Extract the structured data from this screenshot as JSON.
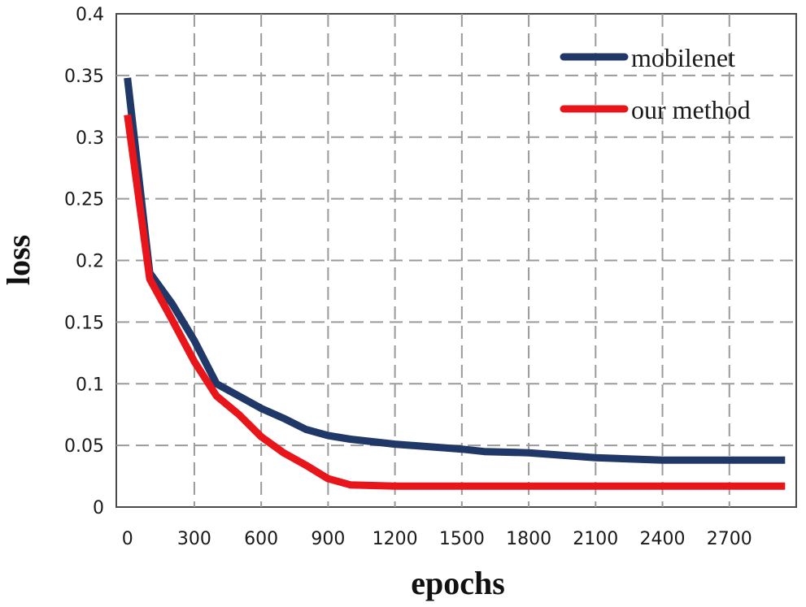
{
  "chart_data": {
    "type": "line",
    "title": "",
    "xlabel": "epochs",
    "ylabel": "loss",
    "xlim": [
      -50,
      3000
    ],
    "ylim": [
      0,
      0.4
    ],
    "grid": true,
    "legend_position": "top-right",
    "x_ticks": [
      0,
      300,
      600,
      900,
      1200,
      1500,
      1800,
      2100,
      2400,
      2700
    ],
    "x_tick_labels": [
      "0",
      "300",
      "600",
      "900",
      "1200",
      "1500",
      "1800",
      "2100",
      "2400",
      "2700"
    ],
    "y_ticks": [
      0,
      0.05,
      0.1,
      0.15,
      0.2,
      0.25,
      0.3,
      0.35,
      0.4
    ],
    "y_tick_labels": [
      "0",
      "0.05",
      "0.1",
      "0.15",
      "0.2",
      "0.25",
      "0.3",
      "0.35",
      "0.4"
    ],
    "series": [
      {
        "name": "mobilenet",
        "color": "#1f3868",
        "x": [
          0,
          100,
          200,
          300,
          400,
          500,
          600,
          700,
          800,
          900,
          1000,
          1200,
          1500,
          1600,
          1800,
          2100,
          2400,
          2700,
          2950
        ],
        "y": [
          0.348,
          0.19,
          0.165,
          0.135,
          0.1,
          0.09,
          0.08,
          0.072,
          0.063,
          0.058,
          0.055,
          0.051,
          0.047,
          0.045,
          0.044,
          0.04,
          0.038,
          0.038,
          0.038
        ]
      },
      {
        "name": "our method",
        "color": "#e8161b",
        "x": [
          0,
          100,
          200,
          300,
          400,
          500,
          600,
          700,
          800,
          900,
          1000,
          1200,
          1500,
          1800,
          2100,
          2400,
          2700,
          2950
        ],
        "y": [
          0.318,
          0.185,
          0.152,
          0.118,
          0.09,
          0.075,
          0.057,
          0.044,
          0.034,
          0.023,
          0.018,
          0.017,
          0.017,
          0.017,
          0.017,
          0.017,
          0.017,
          0.017
        ]
      }
    ]
  }
}
